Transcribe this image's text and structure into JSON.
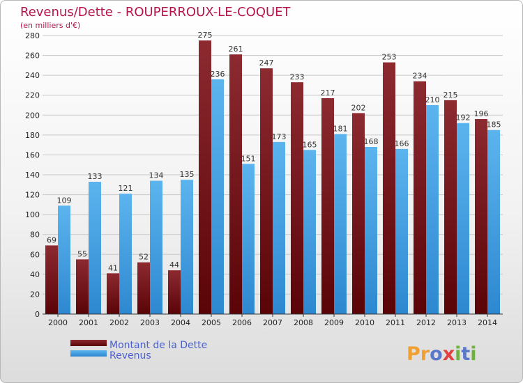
{
  "colors": {
    "debt": "#7a1a1f",
    "revenue": "#4aa6e6",
    "title": "#b5154a",
    "legend_text": "#4a5fd0"
  },
  "logo": {
    "text": "Proxiti",
    "letter_colors": [
      "#f0a030",
      "#f0a030",
      "#5b78c8",
      "#e04040",
      "#70b040",
      "#5b78c8",
      "#70b040"
    ]
  },
  "chart_data": {
    "type": "bar",
    "title": "Revenus/Dette - ROUPERROUX-LE-COQUET",
    "subtitle": "(en milliers d'€)",
    "categories": [
      "2000",
      "2001",
      "2002",
      "2003",
      "2004",
      "2005",
      "2006",
      "2007",
      "2008",
      "2009",
      "2010",
      "2011",
      "2012",
      "2013",
      "2014"
    ],
    "series": [
      {
        "name": "Montant de la Dette",
        "values": [
          69,
          55,
          41,
          52,
          44,
          275,
          261,
          247,
          233,
          217,
          202,
          253,
          234,
          215,
          196
        ]
      },
      {
        "name": "Revenus",
        "values": [
          109,
          133,
          121,
          134,
          135,
          236,
          151,
          173,
          165,
          181,
          168,
          166,
          210,
          192,
          185
        ]
      }
    ],
    "ylim": [
      0,
      280
    ],
    "yticks": [
      0,
      20,
      40,
      60,
      80,
      100,
      120,
      140,
      160,
      180,
      200,
      220,
      240,
      260,
      280
    ],
    "grid": true,
    "legend": "bottom-left"
  }
}
